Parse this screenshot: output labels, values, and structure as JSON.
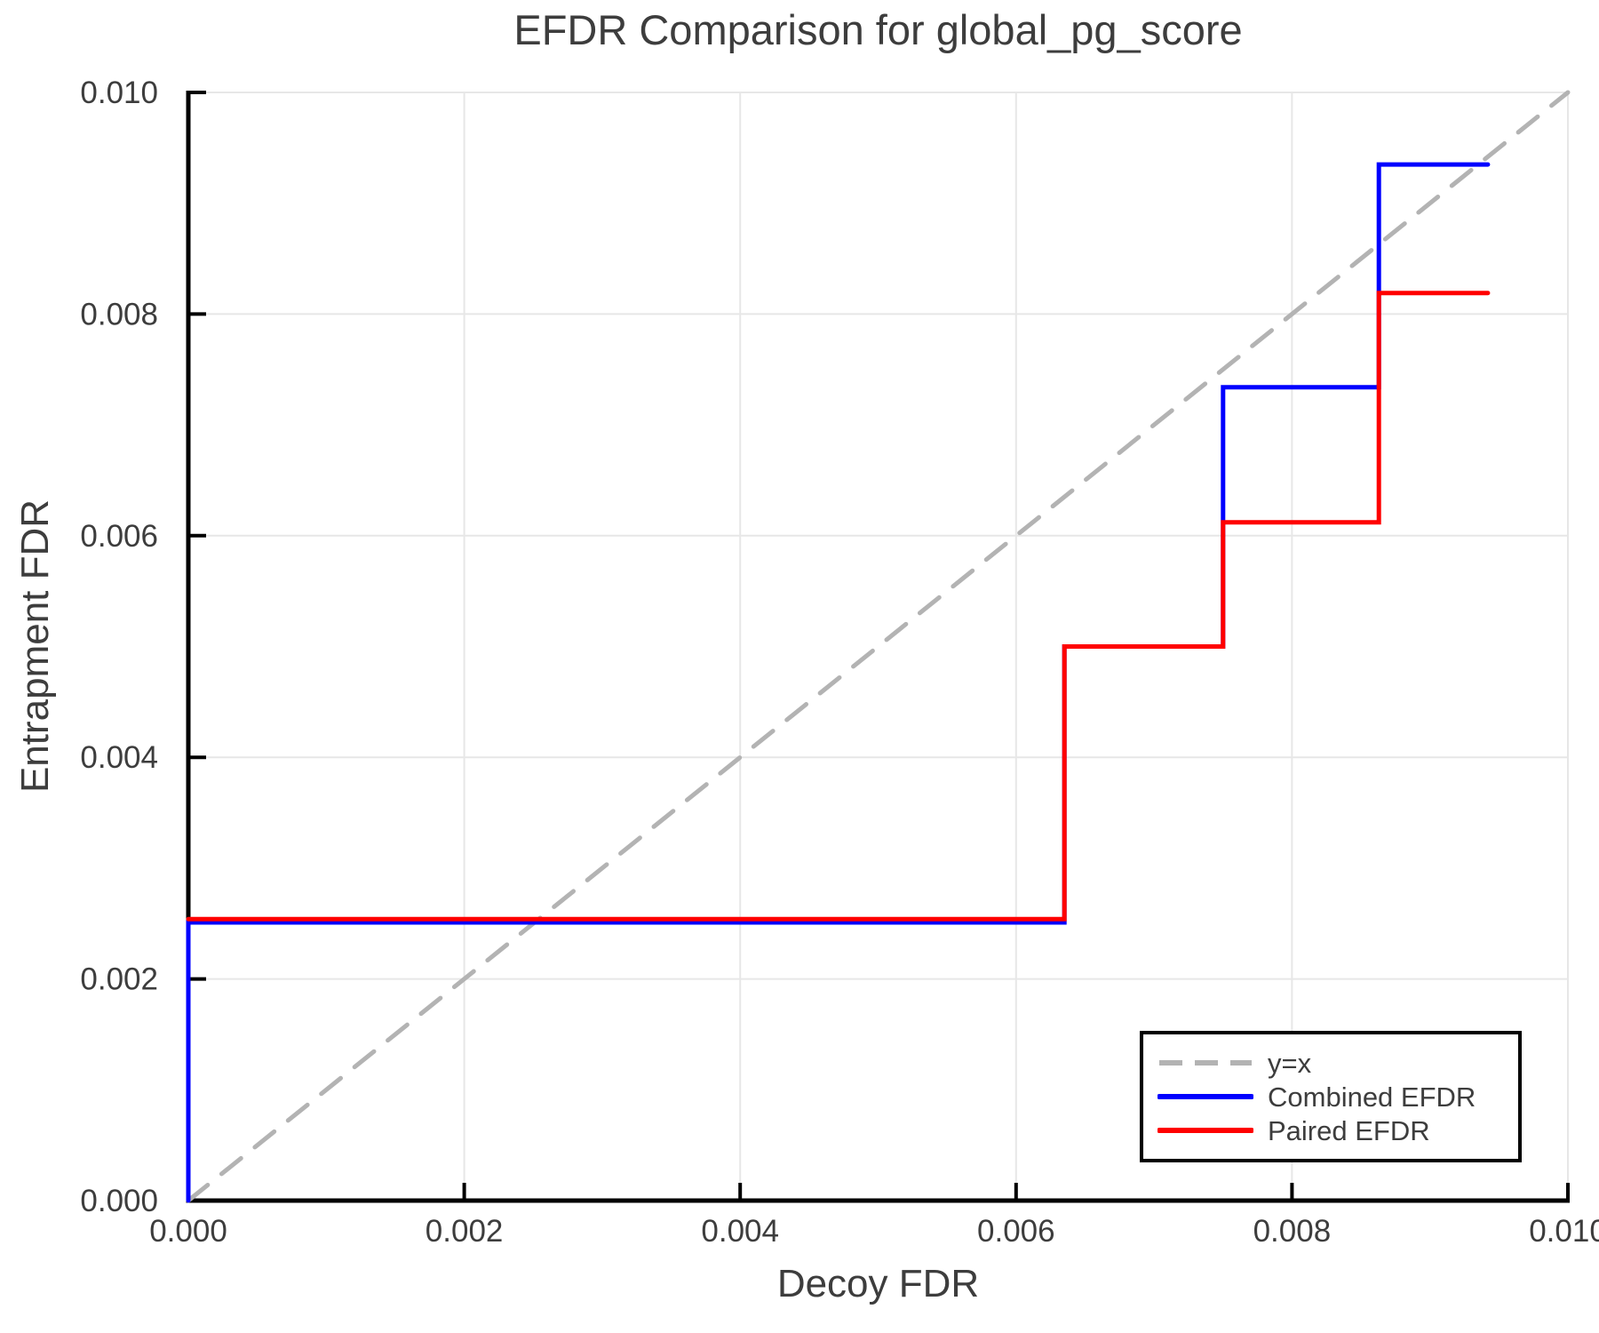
{
  "chart_data": {
    "type": "line",
    "subtype": "step",
    "title": "EFDR Comparison for global_pg_score",
    "xlabel": "Decoy FDR",
    "ylabel": "Entrapment FDR",
    "xlim": [
      0.0,
      0.01
    ],
    "ylim": [
      0.0,
      0.01
    ],
    "grid": true,
    "legend_position": "lower right",
    "xticks": {
      "values": [
        0.0,
        0.002,
        0.004,
        0.006,
        0.008,
        0.01
      ],
      "labels": [
        "0.000",
        "0.002",
        "0.004",
        "0.006",
        "0.008",
        "0.010"
      ]
    },
    "yticks": {
      "values": [
        0.0,
        0.002,
        0.004,
        0.006,
        0.008,
        0.01
      ],
      "labels": [
        "0.000",
        "0.002",
        "0.004",
        "0.006",
        "0.008",
        "0.010"
      ]
    },
    "colors": {
      "grid": "#e7e7e7",
      "spine": "#000000",
      "text": "#3d3d3d",
      "identity_line": "#b3b3b3",
      "combined": "#0000ff",
      "paired": "#ff0000"
    },
    "series": [
      {
        "name": "y=x",
        "style": "dashed",
        "color": "#b3b3b3",
        "width": 5,
        "points": [
          [
            0.0,
            0.0
          ],
          [
            0.01,
            0.01
          ]
        ]
      },
      {
        "name": "Combined EFDR",
        "style": "solid",
        "color": "#0000ff",
        "width": 5,
        "points": [
          [
            0.0,
            0.0
          ],
          [
            0.0,
            0.00251
          ],
          [
            0.00635,
            0.00251
          ],
          [
            0.00635,
            0.005
          ],
          [
            0.0075,
            0.005
          ],
          [
            0.0075,
            0.00734
          ],
          [
            0.00863,
            0.00734
          ],
          [
            0.00863,
            0.00935
          ],
          [
            0.00942,
            0.00935
          ]
        ]
      },
      {
        "name": "Paired EFDR",
        "style": "solid",
        "color": "#ff0000",
        "width": 5,
        "points": [
          [
            0.0,
            0.00254
          ],
          [
            0.00635,
            0.00254
          ],
          [
            0.00635,
            0.005
          ],
          [
            0.0075,
            0.005
          ],
          [
            0.0075,
            0.00612
          ],
          [
            0.00863,
            0.00612
          ],
          [
            0.00863,
            0.00819
          ],
          [
            0.00942,
            0.00819
          ]
        ]
      }
    ],
    "legend_entries": [
      "y=x",
      "Combined EFDR",
      "Paired EFDR"
    ]
  }
}
